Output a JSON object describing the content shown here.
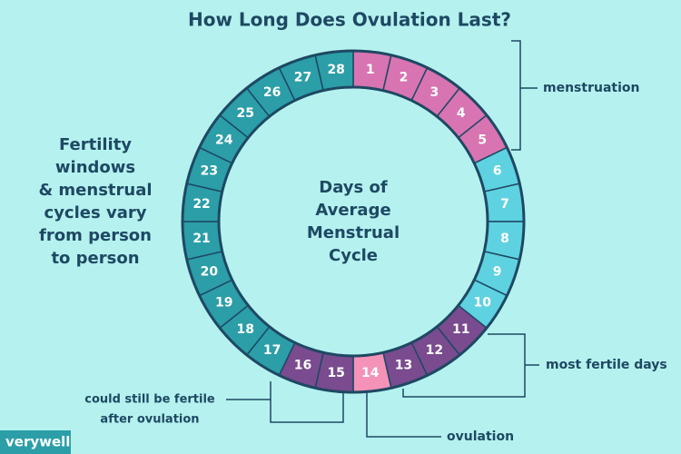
{
  "title": "How Long Does Ovulation Last?",
  "side_text": [
    "Fertility",
    "windows",
    "& menstrual",
    "cycles vary",
    "from person",
    "to person"
  ],
  "center_text": [
    "Days of",
    "Average",
    "Menstrual",
    "Cycle"
  ],
  "segments": [
    {
      "day": 1,
      "color": "#d874b1"
    },
    {
      "day": 2,
      "color": "#d874b1"
    },
    {
      "day": 3,
      "color": "#d874b1"
    },
    {
      "day": 4,
      "color": "#d874b1"
    },
    {
      "day": 5,
      "color": "#d874b1"
    },
    {
      "day": 6,
      "color": "#5ed2e0"
    },
    {
      "day": 7,
      "color": "#5ed2e0"
    },
    {
      "day": 8,
      "color": "#5ed2e0"
    },
    {
      "day": 9,
      "color": "#5ed2e0"
    },
    {
      "day": 10,
      "color": "#5ed2e0"
    },
    {
      "day": 11,
      "color": "#7a4b8f"
    },
    {
      "day": 12,
      "color": "#7a4b8f"
    },
    {
      "day": 13,
      "color": "#7a4b8f"
    },
    {
      "day": 14,
      "color": "#f592b8"
    },
    {
      "day": 15,
      "color": "#7a4b8f"
    },
    {
      "day": 16,
      "color": "#7a4b8f"
    },
    {
      "day": 17,
      "color": "#2b9ea8"
    },
    {
      "day": 18,
      "color": "#2b9ea8"
    },
    {
      "day": 19,
      "color": "#2b9ea8"
    },
    {
      "day": 20,
      "color": "#2b9ea8"
    },
    {
      "day": 21,
      "color": "#2b9ea8"
    },
    {
      "day": 22,
      "color": "#2b9ea8"
    },
    {
      "day": 23,
      "color": "#2b9ea8"
    },
    {
      "day": 24,
      "color": "#2b9ea8"
    },
    {
      "day": 25,
      "color": "#2b9ea8"
    },
    {
      "day": 26,
      "color": "#2b9ea8"
    },
    {
      "day": 27,
      "color": "#2b9ea8"
    },
    {
      "day": 28,
      "color": "#2b9ea8"
    }
  ],
  "annotations": {
    "menstruation": "menstruation",
    "fertile": "most fertile days",
    "ovulation": "ovulation",
    "after": [
      "could still be fertile",
      "after ovulation"
    ]
  },
  "logo": "verywell"
}
